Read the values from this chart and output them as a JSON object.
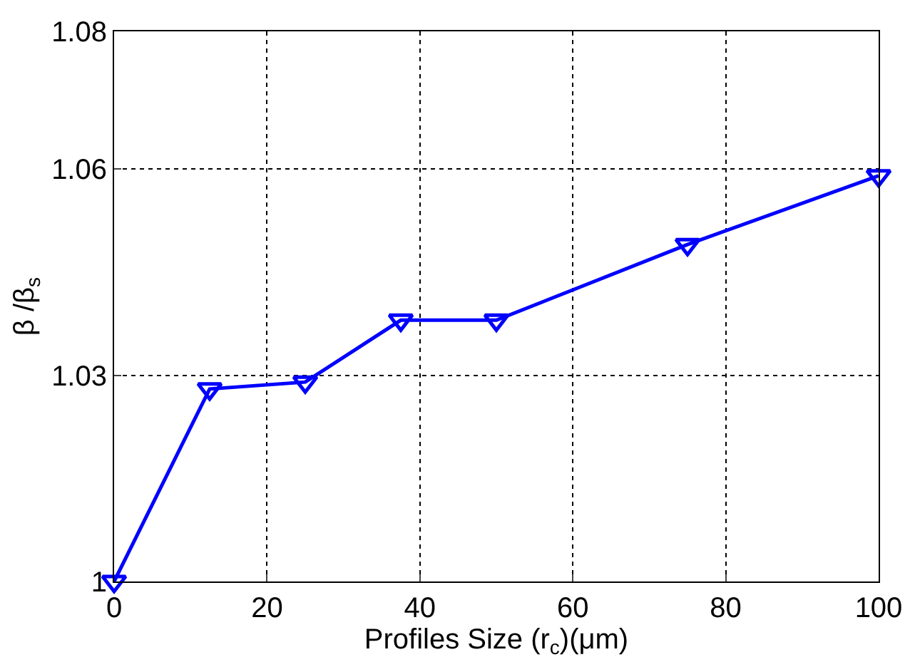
{
  "chart_data": {
    "type": "line",
    "x": [
      0,
      12.5,
      25,
      37.5,
      50,
      75,
      100
    ],
    "series": [
      {
        "color": "#0000ff",
        "values": [
          1.0,
          1.028,
          1.029,
          1.038,
          1.038,
          1.049,
          1.059
        ]
      }
    ],
    "xlabel": "Profiles Size (r$_{c}$)(μm)",
    "ylabel": "β /β$_{s}$",
    "xlim": [
      0,
      100
    ],
    "xticks": [
      0,
      20,
      40,
      60,
      80,
      100
    ],
    "ylim": [
      1,
      1.08
    ],
    "yticks": [
      1,
      1.03,
      1.06,
      1.08
    ],
    "grid": true,
    "marker": "triangle-down",
    "line_style": "solid"
  }
}
